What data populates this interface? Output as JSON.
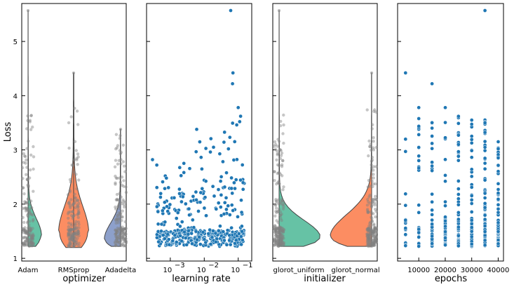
{
  "colors": {
    "adam": "#66c2a5",
    "rmsprop": "#fc8d62",
    "adadelta": "#8da0cb",
    "glorot_uniform": "#66c2a5",
    "glorot_normal": "#fc8d62",
    "strip": "#808080",
    "scatter": "#1f77b4"
  },
  "chart_data": [
    {
      "type": "violin",
      "title": "",
      "xlabel": "optimizer",
      "ylabel": "Loss",
      "ylim": [
        0.95,
        5.7
      ],
      "yticks": [
        1,
        2,
        3,
        4,
        5
      ],
      "categories": [
        "Adam",
        "RMSprop",
        "Adadelta"
      ],
      "series": [
        {
          "name": "Adam",
          "min": 1.22,
          "max": 5.57,
          "median": 1.42,
          "q1": 1.33,
          "q3": 1.62
        },
        {
          "name": "RMSprop",
          "min": 1.2,
          "max": 4.42,
          "median": 1.48,
          "q1": 1.36,
          "q3": 1.85
        },
        {
          "name": "Adadelta",
          "min": 1.22,
          "max": 3.38,
          "median": 1.35,
          "q1": 1.28,
          "q3": 1.55
        }
      ]
    },
    {
      "type": "scatter",
      "xlabel": "learning rate",
      "xscale": "log",
      "xlim": [
        0.0002,
        0.25
      ],
      "xticks": [
        "10",
        "10",
        "10"
      ],
      "xtick_exponents": [
        "−3",
        "−2",
        "−1"
      ],
      "xtick_values": [
        0.001,
        0.01,
        0.1
      ],
      "ylim": [
        0.95,
        5.7
      ],
      "notable_points": [
        {
          "x": 0.06,
          "y": 5.57
        },
        {
          "x": 0.07,
          "y": 4.42
        },
        {
          "x": 0.068,
          "y": 4.22
        },
        {
          "x": 0.1,
          "y": 3.78
        },
        {
          "x": 0.0003,
          "y": 2.82
        },
        {
          "x": 0.0004,
          "y": 2.72
        },
        {
          "x": 0.006,
          "y": 3.38
        }
      ]
    },
    {
      "type": "violin",
      "xlabel": "initializer",
      "categories": [
        "glorot_uniform",
        "glorot_normal"
      ],
      "ylim": [
        0.95,
        5.7
      ],
      "series": [
        {
          "name": "glorot_uniform",
          "min": 1.22,
          "max": 5.57,
          "median": 1.38,
          "q1": 1.3,
          "q3": 1.6
        },
        {
          "name": "glorot_normal",
          "min": 1.22,
          "max": 4.42,
          "median": 1.4,
          "q1": 1.3,
          "q3": 1.75
        }
      ]
    },
    {
      "type": "scatter",
      "xlabel": "epochs",
      "xlim": [
        2000,
        42000
      ],
      "xticks": [
        "10000",
        "20000",
        "30000",
        "40000"
      ],
      "xtick_values": [
        10000,
        20000,
        30000,
        40000
      ],
      "ylim": [
        0.95,
        5.7
      ],
      "columns": [
        {
          "x": 5000,
          "max": 4.42
        },
        {
          "x": 10000,
          "max": 3.78
        },
        {
          "x": 15000,
          "max": 4.22
        },
        {
          "x": 20000,
          "max": 3.78
        },
        {
          "x": 25000,
          "max": 3.62
        },
        {
          "x": 30000,
          "max": 3.55
        },
        {
          "x": 35000,
          "max": 5.57
        },
        {
          "x": 40000,
          "max": 3.15
        }
      ]
    }
  ]
}
